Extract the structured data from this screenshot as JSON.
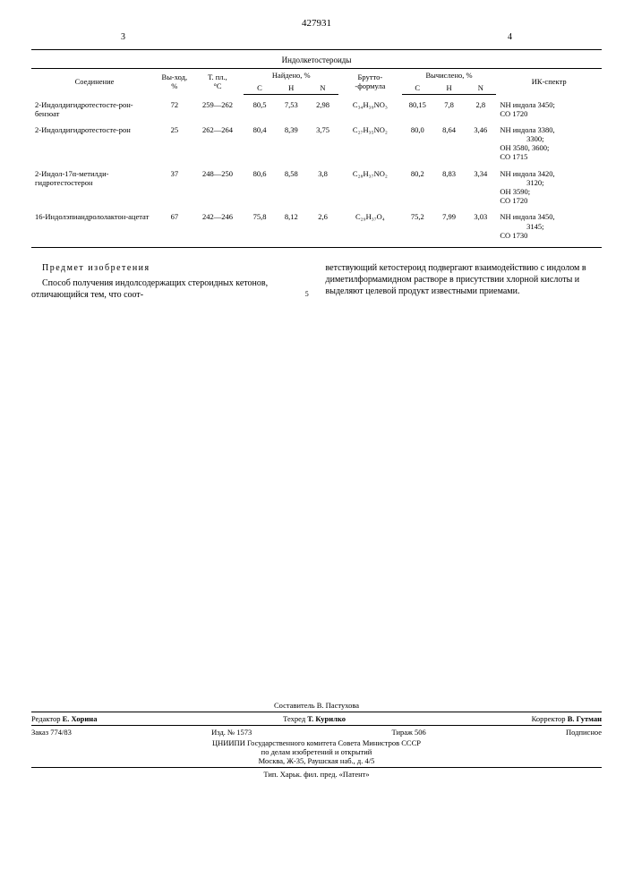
{
  "doc_number": "427931",
  "page_left": "3",
  "page_right": "4",
  "table_title": "Индолкетостероиды",
  "headers": {
    "compound": "Соединение",
    "yield": "Вы-ход,\n%",
    "mp": "Т. пл.,\n°C",
    "found": "Найдено, %",
    "formula": "Брутто-\n-формула",
    "calc": "Вычислено, %",
    "spectrum": "ИК-спектр",
    "c": "C",
    "h": "H",
    "n": "N"
  },
  "rows": [
    {
      "compound": "2-Индолдигидротестосте-рон-бензоат",
      "yield": "72",
      "mp": "259—262",
      "fc": "80,5",
      "fh": "7,53",
      "fn": "2,98",
      "formula": "C₃₄H₃₉NO₃",
      "cc": "80,15",
      "ch": "7,8",
      "cn": "2,8",
      "spectrum": "NH индола 3450;\nCO 1720"
    },
    {
      "compound": "2-Индолдигидротестосте-рон",
      "yield": "25",
      "mp": "262—264",
      "fc": "80,4",
      "fh": "8,39",
      "fn": "3,75",
      "formula": "C₂₇H₃₅NO₂",
      "cc": "80,0",
      "ch": "8,64",
      "cn": "3,46",
      "spectrum": "NH индола 3380,\n              3300;\nOH 3580, 3600;\nCO 1715"
    },
    {
      "compound": "2-Индол-17α-метилди-гидротестостерон",
      "yield": "37",
      "mp": "248—250",
      "fc": "80,6",
      "fh": "8,58",
      "fn": "3,8",
      "formula": "C₂₈H₃₇NO₂",
      "cc": "80,2",
      "ch": "8,83",
      "cn": "3,34",
      "spectrum": "NH индола 3420,\n              3120;\nOH 3590;\nCO 1720"
    },
    {
      "compound": "16-Индолэпиандрололактон-ацетат",
      "yield": "67",
      "mp": "242—246",
      "fc": "75,8",
      "fh": "8,12",
      "fn": "2,6",
      "formula": "C₂₉H₃₇O₄",
      "cc": "75,2",
      "ch": "7,99",
      "cn": "3,03",
      "spectrum": "NH индола 3450,\n              3145;\nCO 1730"
    }
  ],
  "subject_title": "Предмет изобретения",
  "body_left": "Способ получения индолсодержащих стероидных кетонов, отличающийся тем, что соот-",
  "body_right": "ветствующий кетостероид подвергают взаимодействию с индолом в диметилформамидном растворе в присутствии хлорной кислоты и выделяют целевой продукт известными приемами.",
  "line_num": "5",
  "footer": {
    "compiler": "Составитель В. Пастухова",
    "editor_label": "Редактор",
    "editor": "Е. Хорина",
    "techred_label": "Техред",
    "techred": "Т. Курилко",
    "corrector_label": "Корректор",
    "corrector": "В. Гутман",
    "order": "Заказ 774/83",
    "izd": "Изд. № 1573",
    "tirage": "Тираж 506",
    "subscribe": "Подписное",
    "org1": "ЦНИИПИ Государственного комитета Совета Министров СССР",
    "org2": "по делам изобретений и открытий",
    "addr": "Москва, Ж-35, Раушская наб., д. 4/5",
    "printer": "Тип. Харьк. фил. пред. «Патент»"
  }
}
